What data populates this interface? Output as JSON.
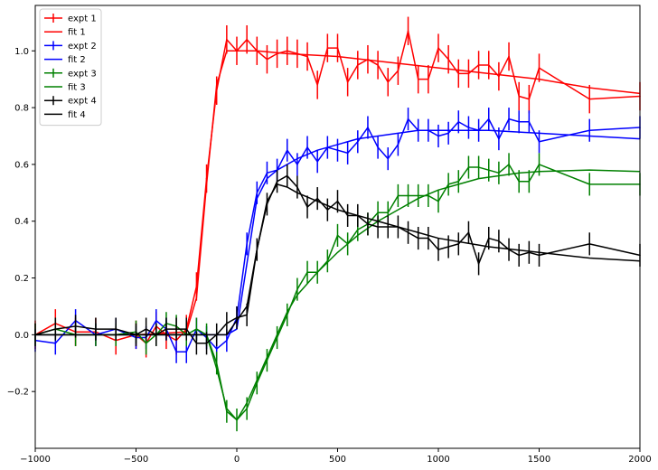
{
  "chart_data": {
    "type": "line",
    "xlim": [
      -1000,
      2000
    ],
    "ylim": [
      -0.4,
      1.16
    ],
    "x_ticks": [
      -1000,
      -500,
      0,
      500,
      1000,
      1500,
      2000
    ],
    "x_tick_labels": [
      "−1000",
      "−500",
      "0",
      "500",
      "1000",
      "1500",
      "2000"
    ],
    "y_ticks": [
      -0.2,
      0.0,
      0.2,
      0.4,
      0.6,
      0.8,
      1.0
    ],
    "y_tick_labels": [
      "−0.2",
      "0.0",
      "0.2",
      "0.4",
      "0.6",
      "0.8",
      "1.0"
    ],
    "grid": false,
    "legend_position": "top-left",
    "legend": [
      {
        "label": "expt 1",
        "kind": "errorbar",
        "color": "#ff0000"
      },
      {
        "label": "fit 1",
        "kind": "line",
        "color": "#ff0000"
      },
      {
        "label": "expt 2",
        "kind": "errorbar",
        "color": "#0000ff"
      },
      {
        "label": "fit 2",
        "kind": "line",
        "color": "#0000ff"
      },
      {
        "label": "expt 3",
        "kind": "errorbar",
        "color": "#008000"
      },
      {
        "label": "fit 3",
        "kind": "line",
        "color": "#008000"
      },
      {
        "label": "expt 4",
        "kind": "errorbar",
        "color": "#000000"
      },
      {
        "label": "fit 4",
        "kind": "line",
        "color": "#000000"
      }
    ],
    "series": [
      {
        "name": "expt 1",
        "kind": "errorbar",
        "color": "#ff0000",
        "err": 0.05,
        "x": [
          -1000,
          -900,
          -800,
          -700,
          -600,
          -500,
          -450,
          -400,
          -350,
          -300,
          -250,
          -200,
          -150,
          -100,
          -50,
          0,
          50,
          100,
          150,
          200,
          250,
          300,
          350,
          400,
          450,
          500,
          550,
          600,
          650,
          700,
          750,
          800,
          850,
          900,
          950,
          1000,
          1050,
          1100,
          1150,
          1200,
          1250,
          1300,
          1350,
          1400,
          1450,
          1500,
          1750,
          2000
        ],
        "y": [
          0.0,
          0.04,
          0.01,
          0.01,
          -0.02,
          0.0,
          -0.03,
          0.03,
          0.0,
          -0.02,
          0.02,
          0.17,
          0.55,
          0.86,
          1.04,
          1.0,
          1.04,
          1.0,
          0.97,
          0.99,
          1.0,
          0.99,
          0.98,
          0.88,
          1.01,
          1.01,
          0.89,
          0.95,
          0.97,
          0.95,
          0.89,
          0.93,
          1.07,
          0.9,
          0.9,
          1.01,
          0.97,
          0.92,
          0.92,
          0.95,
          0.95,
          0.91,
          0.98,
          0.84,
          0.83,
          0.94,
          0.83,
          0.84
        ]
      },
      {
        "name": "fit 1",
        "kind": "line",
        "color": "#ff0000",
        "x": [
          -1000,
          -500,
          -250,
          -200,
          -150,
          -100,
          -50,
          0,
          100,
          250,
          500,
          750,
          1000,
          1250,
          1500,
          1750,
          2000
        ],
        "y": [
          0.0,
          0.0,
          0.01,
          0.13,
          0.53,
          0.88,
          1.0,
          1.0,
          1.0,
          0.99,
          0.98,
          0.96,
          0.94,
          0.92,
          0.9,
          0.87,
          0.85
        ]
      },
      {
        "name": "expt 2",
        "kind": "errorbar",
        "color": "#0000ff",
        "err": 0.04,
        "x": [
          -1000,
          -900,
          -800,
          -700,
          -600,
          -500,
          -450,
          -400,
          -350,
          -300,
          -250,
          -200,
          -150,
          -100,
          -50,
          0,
          50,
          100,
          150,
          200,
          250,
          300,
          350,
          400,
          450,
          500,
          550,
          600,
          650,
          700,
          750,
          800,
          850,
          900,
          950,
          1000,
          1050,
          1100,
          1150,
          1200,
          1250,
          1300,
          1350,
          1400,
          1450,
          1500,
          1750,
          2000
        ],
        "y": [
          -0.02,
          -0.03,
          0.05,
          0.0,
          0.02,
          -0.01,
          -0.01,
          0.05,
          0.02,
          -0.06,
          -0.06,
          0.02,
          -0.01,
          -0.05,
          -0.02,
          0.06,
          0.32,
          0.5,
          0.57,
          0.58,
          0.65,
          0.6,
          0.66,
          0.61,
          0.66,
          0.65,
          0.64,
          0.68,
          0.73,
          0.66,
          0.62,
          0.67,
          0.76,
          0.72,
          0.72,
          0.7,
          0.71,
          0.75,
          0.73,
          0.72,
          0.76,
          0.69,
          0.76,
          0.75,
          0.75,
          0.68,
          0.72,
          0.73
        ]
      },
      {
        "name": "fit 2",
        "kind": "line",
        "color": "#0000ff",
        "x": [
          -1000,
          -500,
          -100,
          -50,
          0,
          50,
          100,
          150,
          200,
          300,
          400,
          500,
          600,
          700,
          800,
          900,
          1000,
          1250,
          1500,
          1750,
          2000
        ],
        "y": [
          0.0,
          0.0,
          0.0,
          0.0,
          0.02,
          0.25,
          0.48,
          0.55,
          0.58,
          0.62,
          0.65,
          0.67,
          0.69,
          0.7,
          0.71,
          0.72,
          0.72,
          0.72,
          0.71,
          0.7,
          0.69
        ]
      },
      {
        "name": "expt 3",
        "kind": "errorbar",
        "color": "#008000",
        "err": 0.04,
        "x": [
          -1000,
          -900,
          -800,
          -700,
          -600,
          -500,
          -450,
          -400,
          -350,
          -300,
          -250,
          -200,
          -150,
          -100,
          -50,
          0,
          50,
          100,
          150,
          200,
          250,
          300,
          350,
          400,
          450,
          500,
          550,
          600,
          650,
          700,
          750,
          800,
          850,
          900,
          950,
          1000,
          1050,
          1100,
          1150,
          1200,
          1250,
          1300,
          1350,
          1400,
          1450,
          1500,
          1750,
          2000
        ],
        "y": [
          0.0,
          0.02,
          0.0,
          0.0,
          0.0,
          0.01,
          -0.03,
          0.0,
          0.04,
          0.03,
          0.0,
          0.02,
          0.0,
          -0.1,
          -0.27,
          -0.3,
          -0.26,
          -0.17,
          -0.09,
          -0.01,
          0.07,
          0.16,
          0.22,
          0.22,
          0.26,
          0.35,
          0.32,
          0.37,
          0.39,
          0.43,
          0.43,
          0.49,
          0.49,
          0.49,
          0.49,
          0.47,
          0.53,
          0.54,
          0.59,
          0.59,
          0.58,
          0.57,
          0.6,
          0.54,
          0.54,
          0.6,
          0.53,
          0.53
        ]
      },
      {
        "name": "fit 3",
        "kind": "line",
        "color": "#008000",
        "x": [
          -1000,
          -500,
          -150,
          -100,
          -50,
          0,
          50,
          100,
          150,
          200,
          250,
          300,
          400,
          500,
          600,
          700,
          800,
          900,
          1000,
          1100,
          1200,
          1300,
          1400,
          1500,
          1750,
          2000
        ],
        "y": [
          0.0,
          0.0,
          0.0,
          -0.12,
          -0.26,
          -0.3,
          -0.24,
          -0.16,
          -0.08,
          0.0,
          0.08,
          0.14,
          0.22,
          0.29,
          0.35,
          0.4,
          0.44,
          0.48,
          0.51,
          0.53,
          0.55,
          0.56,
          0.57,
          0.575,
          0.58,
          0.575
        ]
      },
      {
        "name": "expt 4",
        "kind": "errorbar",
        "color": "#000000",
        "err": 0.04,
        "x": [
          -1000,
          -900,
          -800,
          -700,
          -600,
          -500,
          -450,
          -400,
          -350,
          -300,
          -250,
          -200,
          -150,
          -100,
          -50,
          0,
          50,
          100,
          150,
          200,
          250,
          300,
          350,
          400,
          450,
          500,
          550,
          600,
          650,
          700,
          750,
          800,
          850,
          900,
          950,
          1000,
          1050,
          1100,
          1150,
          1200,
          1250,
          1300,
          1350,
          1400,
          1450,
          1500,
          1750,
          2000
        ],
        "y": [
          0.0,
          0.02,
          0.03,
          0.02,
          0.02,
          0.0,
          0.02,
          0.0,
          0.02,
          0.02,
          0.02,
          -0.03,
          -0.03,
          0.0,
          0.04,
          0.06,
          0.07,
          0.3,
          0.46,
          0.54,
          0.56,
          0.52,
          0.45,
          0.48,
          0.44,
          0.47,
          0.42,
          0.42,
          0.39,
          0.38,
          0.38,
          0.38,
          0.36,
          0.34,
          0.34,
          0.3,
          0.31,
          0.32,
          0.36,
          0.25,
          0.34,
          0.33,
          0.3,
          0.28,
          0.29,
          0.28,
          0.32,
          0.28
        ]
      },
      {
        "name": "fit 4",
        "kind": "line",
        "color": "#000000",
        "x": [
          -1000,
          -500,
          -100,
          -50,
          0,
          50,
          100,
          150,
          200,
          250,
          300,
          400,
          500,
          600,
          700,
          800,
          900,
          1000,
          1250,
          1500,
          1750,
          2000
        ],
        "y": [
          0.0,
          0.0,
          0.0,
          0.0,
          0.05,
          0.1,
          0.3,
          0.47,
          0.53,
          0.52,
          0.5,
          0.47,
          0.44,
          0.42,
          0.4,
          0.38,
          0.36,
          0.34,
          0.31,
          0.29,
          0.27,
          0.26
        ]
      }
    ]
  }
}
